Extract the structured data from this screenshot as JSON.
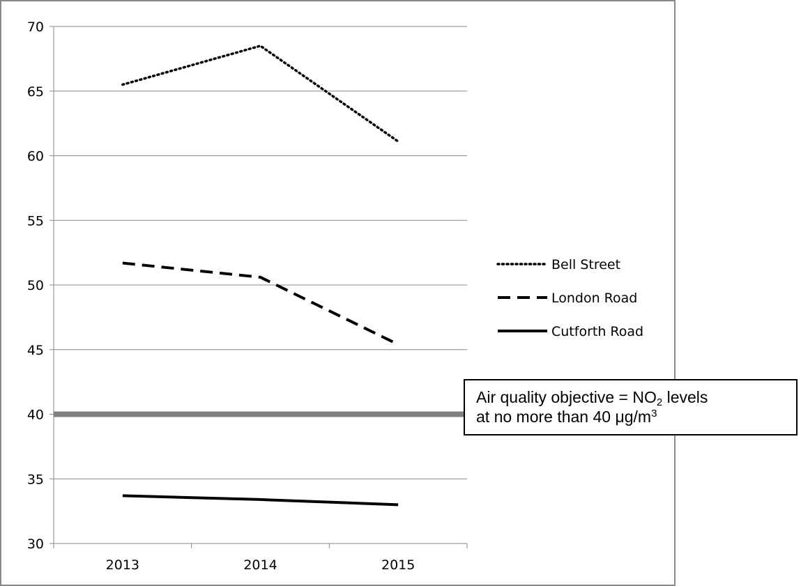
{
  "chart_data": {
    "type": "line",
    "title": "",
    "xlabel": "",
    "ylabel": "",
    "categories": [
      "2013",
      "2014",
      "2015"
    ],
    "ylim": [
      30,
      70
    ],
    "yticks": [
      "30",
      "35",
      "40",
      "45",
      "50",
      "55",
      "60",
      "65",
      "70"
    ],
    "grid": true,
    "legend_position": "right",
    "series": [
      {
        "name": "Bell Street",
        "values": [
          65.5,
          68.5,
          61.1
        ],
        "style": "dotted",
        "color": "#000000"
      },
      {
        "name": "London Road",
        "values": [
          51.7,
          50.6,
          45.4
        ],
        "style": "dashed",
        "color": "#000000"
      },
      {
        "name": "Cutforth Road",
        "values": [
          33.7,
          33.4,
          33.0
        ],
        "style": "solid",
        "color": "#000000"
      }
    ],
    "reference_line": {
      "value": 40,
      "color": "#808080"
    },
    "annotation": {
      "prefix": "Air quality objective = NO",
      "sub": "2",
      "mid": " levels",
      "line2": "at no more than 40 μg/m",
      "sup": "3"
    }
  }
}
